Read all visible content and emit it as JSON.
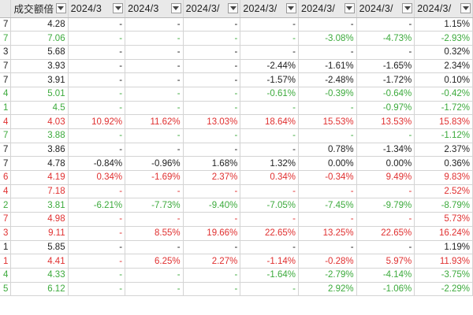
{
  "headers": [
    "",
    "成交额倍",
    "2024/3",
    "2024/3",
    "2024/3/",
    "2024/3/",
    "2024/3/",
    "2024/3/",
    "2024/3/"
  ],
  "rows": [
    [
      {
        "t": "7",
        "c": "black"
      },
      {
        "t": "4.28",
        "c": "black"
      },
      {
        "t": "-",
        "c": "black"
      },
      {
        "t": "-",
        "c": "black"
      },
      {
        "t": "-",
        "c": "black"
      },
      {
        "t": "-",
        "c": "black"
      },
      {
        "t": "-",
        "c": "black"
      },
      {
        "t": "-",
        "c": "black"
      },
      {
        "t": "1.15%",
        "c": "black"
      }
    ],
    [
      {
        "t": "7",
        "c": "green"
      },
      {
        "t": "7.06",
        "c": "green"
      },
      {
        "t": "-",
        "c": "green"
      },
      {
        "t": "-",
        "c": "green"
      },
      {
        "t": "-",
        "c": "green"
      },
      {
        "t": "-",
        "c": "green"
      },
      {
        "t": "-3.08%",
        "c": "green"
      },
      {
        "t": "-4.73%",
        "c": "green"
      },
      {
        "t": "-2.93%",
        "c": "green"
      }
    ],
    [
      {
        "t": "3",
        "c": "black"
      },
      {
        "t": "5.68",
        "c": "black"
      },
      {
        "t": "-",
        "c": "black"
      },
      {
        "t": "-",
        "c": "black"
      },
      {
        "t": "-",
        "c": "black"
      },
      {
        "t": "-",
        "c": "black"
      },
      {
        "t": "-",
        "c": "black"
      },
      {
        "t": "-",
        "c": "black"
      },
      {
        "t": "0.32%",
        "c": "black"
      }
    ],
    [
      {
        "t": "7",
        "c": "black"
      },
      {
        "t": "3.93",
        "c": "black"
      },
      {
        "t": "-",
        "c": "black"
      },
      {
        "t": "-",
        "c": "black"
      },
      {
        "t": "-",
        "c": "black"
      },
      {
        "t": "-2.44%",
        "c": "black"
      },
      {
        "t": "-1.61%",
        "c": "black"
      },
      {
        "t": "-1.65%",
        "c": "black"
      },
      {
        "t": "2.34%",
        "c": "black"
      }
    ],
    [
      {
        "t": "7",
        "c": "black"
      },
      {
        "t": "3.91",
        "c": "black"
      },
      {
        "t": "-",
        "c": "black"
      },
      {
        "t": "-",
        "c": "black"
      },
      {
        "t": "-",
        "c": "black"
      },
      {
        "t": "-1.57%",
        "c": "black"
      },
      {
        "t": "-2.48%",
        "c": "black"
      },
      {
        "t": "-1.72%",
        "c": "black"
      },
      {
        "t": "0.10%",
        "c": "black"
      }
    ],
    [
      {
        "t": "4",
        "c": "green"
      },
      {
        "t": "5.01",
        "c": "green"
      },
      {
        "t": "-",
        "c": "green"
      },
      {
        "t": "-",
        "c": "green"
      },
      {
        "t": "-",
        "c": "green"
      },
      {
        "t": "-0.61%",
        "c": "green"
      },
      {
        "t": "-0.39%",
        "c": "green"
      },
      {
        "t": "-0.64%",
        "c": "green"
      },
      {
        "t": "-0.42%",
        "c": "green"
      }
    ],
    [
      {
        "t": "1",
        "c": "green"
      },
      {
        "t": "4.5",
        "c": "green"
      },
      {
        "t": "-",
        "c": "green"
      },
      {
        "t": "-",
        "c": "green"
      },
      {
        "t": "-",
        "c": "green"
      },
      {
        "t": "-",
        "c": "green"
      },
      {
        "t": "-",
        "c": "green"
      },
      {
        "t": "-0.97%",
        "c": "green"
      },
      {
        "t": "-1.72%",
        "c": "green"
      }
    ],
    [
      {
        "t": "4",
        "c": "red"
      },
      {
        "t": "4.03",
        "c": "red"
      },
      {
        "t": "10.92%",
        "c": "red"
      },
      {
        "t": "11.62%",
        "c": "red"
      },
      {
        "t": "13.03%",
        "c": "red"
      },
      {
        "t": "18.64%",
        "c": "red"
      },
      {
        "t": "15.53%",
        "c": "red"
      },
      {
        "t": "13.53%",
        "c": "red"
      },
      {
        "t": "15.83%",
        "c": "red"
      }
    ],
    [
      {
        "t": "7",
        "c": "green"
      },
      {
        "t": "3.88",
        "c": "green"
      },
      {
        "t": "-",
        "c": "green"
      },
      {
        "t": "-",
        "c": "green"
      },
      {
        "t": "-",
        "c": "green"
      },
      {
        "t": "-",
        "c": "green"
      },
      {
        "t": "-",
        "c": "green"
      },
      {
        "t": "-",
        "c": "green"
      },
      {
        "t": "-1.12%",
        "c": "green"
      }
    ],
    [
      {
        "t": "7",
        "c": "black"
      },
      {
        "t": "3.86",
        "c": "black"
      },
      {
        "t": "-",
        "c": "black"
      },
      {
        "t": "-",
        "c": "black"
      },
      {
        "t": "-",
        "c": "black"
      },
      {
        "t": "-",
        "c": "black"
      },
      {
        "t": "0.78%",
        "c": "black"
      },
      {
        "t": "-1.34%",
        "c": "black"
      },
      {
        "t": "2.37%",
        "c": "black"
      }
    ],
    [
      {
        "t": "7",
        "c": "black"
      },
      {
        "t": "4.78",
        "c": "black"
      },
      {
        "t": "-0.84%",
        "c": "black"
      },
      {
        "t": "-0.96%",
        "c": "black"
      },
      {
        "t": "1.68%",
        "c": "black"
      },
      {
        "t": "1.32%",
        "c": "black"
      },
      {
        "t": "0.00%",
        "c": "black"
      },
      {
        "t": "0.00%",
        "c": "black"
      },
      {
        "t": "0.36%",
        "c": "black"
      }
    ],
    [
      {
        "t": "6",
        "c": "red"
      },
      {
        "t": "4.19",
        "c": "red"
      },
      {
        "t": "0.34%",
        "c": "red"
      },
      {
        "t": "-1.69%",
        "c": "red"
      },
      {
        "t": "2.37%",
        "c": "red"
      },
      {
        "t": "0.34%",
        "c": "red"
      },
      {
        "t": "-0.34%",
        "c": "red"
      },
      {
        "t": "9.49%",
        "c": "red"
      },
      {
        "t": "9.83%",
        "c": "red"
      }
    ],
    [
      {
        "t": "4",
        "c": "red"
      },
      {
        "t": "7.18",
        "c": "red"
      },
      {
        "t": "-",
        "c": "red"
      },
      {
        "t": "-",
        "c": "red"
      },
      {
        "t": "-",
        "c": "red"
      },
      {
        "t": "-",
        "c": "red"
      },
      {
        "t": "-",
        "c": "red"
      },
      {
        "t": "-",
        "c": "red"
      },
      {
        "t": "2.52%",
        "c": "red"
      }
    ],
    [
      {
        "t": "2",
        "c": "green"
      },
      {
        "t": "3.81",
        "c": "green"
      },
      {
        "t": "-6.21%",
        "c": "green"
      },
      {
        "t": "-7.73%",
        "c": "green"
      },
      {
        "t": "-9.40%",
        "c": "green"
      },
      {
        "t": "-7.05%",
        "c": "green"
      },
      {
        "t": "-7.45%",
        "c": "green"
      },
      {
        "t": "-9.79%",
        "c": "green"
      },
      {
        "t": "-8.79%",
        "c": "green"
      }
    ],
    [
      {
        "t": "7",
        "c": "red"
      },
      {
        "t": "4.98",
        "c": "red"
      },
      {
        "t": "-",
        "c": "red"
      },
      {
        "t": "-",
        "c": "red"
      },
      {
        "t": "-",
        "c": "red"
      },
      {
        "t": "-",
        "c": "red"
      },
      {
        "t": "-",
        "c": "red"
      },
      {
        "t": "-",
        "c": "red"
      },
      {
        "t": "5.73%",
        "c": "red"
      }
    ],
    [
      {
        "t": "3",
        "c": "red"
      },
      {
        "t": "9.11",
        "c": "red"
      },
      {
        "t": "-",
        "c": "red"
      },
      {
        "t": "8.55%",
        "c": "red"
      },
      {
        "t": "19.66%",
        "c": "red"
      },
      {
        "t": "22.65%",
        "c": "red"
      },
      {
        "t": "13.25%",
        "c": "red"
      },
      {
        "t": "22.65%",
        "c": "red"
      },
      {
        "t": "16.24%",
        "c": "red"
      }
    ],
    [
      {
        "t": "1",
        "c": "black"
      },
      {
        "t": "5.85",
        "c": "black"
      },
      {
        "t": "-",
        "c": "black"
      },
      {
        "t": "-",
        "c": "black"
      },
      {
        "t": "-",
        "c": "black"
      },
      {
        "t": "-",
        "c": "black"
      },
      {
        "t": "-",
        "c": "black"
      },
      {
        "t": "-",
        "c": "black"
      },
      {
        "t": "1.19%",
        "c": "black"
      }
    ],
    [
      {
        "t": "1",
        "c": "red"
      },
      {
        "t": "4.41",
        "c": "red"
      },
      {
        "t": "-",
        "c": "red"
      },
      {
        "t": "6.25%",
        "c": "red"
      },
      {
        "t": "2.27%",
        "c": "red"
      },
      {
        "t": "-1.14%",
        "c": "red"
      },
      {
        "t": "-0.28%",
        "c": "red"
      },
      {
        "t": "5.97%",
        "c": "red"
      },
      {
        "t": "11.93%",
        "c": "red"
      }
    ],
    [
      {
        "t": "4",
        "c": "green"
      },
      {
        "t": "4.33",
        "c": "green"
      },
      {
        "t": "-",
        "c": "green"
      },
      {
        "t": "-",
        "c": "green"
      },
      {
        "t": "-",
        "c": "green"
      },
      {
        "t": "-1.64%",
        "c": "green"
      },
      {
        "t": "-2.79%",
        "c": "green"
      },
      {
        "t": "-4.14%",
        "c": "green"
      },
      {
        "t": "-3.75%",
        "c": "green"
      }
    ],
    [
      {
        "t": "5",
        "c": "green"
      },
      {
        "t": "6.12",
        "c": "green"
      },
      {
        "t": "-",
        "c": "green"
      },
      {
        "t": "-",
        "c": "green"
      },
      {
        "t": "-",
        "c": "green"
      },
      {
        "t": "-",
        "c": "green"
      },
      {
        "t": "2.92%",
        "c": "green"
      },
      {
        "t": "-1.06%",
        "c": "green"
      },
      {
        "t": "-2.29%",
        "c": "green"
      }
    ]
  ]
}
